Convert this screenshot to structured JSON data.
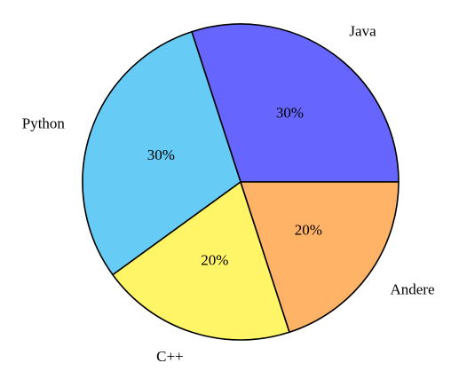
{
  "chart_data": {
    "type": "pie",
    "categories": [
      "Java",
      "Python",
      "C++",
      "Andere"
    ],
    "values": [
      30,
      30,
      20,
      20
    ],
    "value_labels": [
      "30%",
      "30%",
      "20%",
      "20%"
    ],
    "colors": [
      "#6666ff",
      "#66ccf5",
      "#fff566",
      "#ffb366"
    ]
  }
}
